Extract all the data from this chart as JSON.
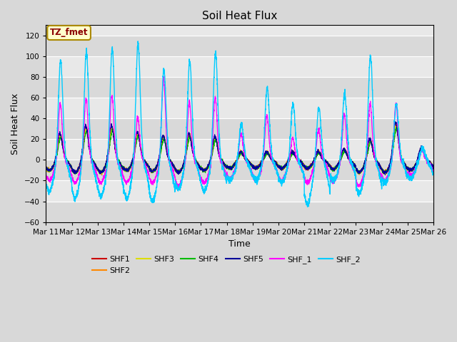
{
  "title": "Soil Heat Flux",
  "xlabel": "Time",
  "ylabel": "Soil Heat Flux",
  "ylim": [
    -60,
    130
  ],
  "yticks": [
    -60,
    -40,
    -20,
    0,
    20,
    40,
    60,
    80,
    100,
    120
  ],
  "xtick_labels": [
    "Mar 11",
    "Mar 12",
    "Mar 13",
    "Mar 14",
    "Mar 15",
    "Mar 16",
    "Mar 17",
    "Mar 18",
    "Mar 19",
    "Mar 20",
    "Mar 21",
    "Mar 22",
    "Mar 23",
    "Mar 24",
    "Mar 25",
    "Mar 26"
  ],
  "series_colors": {
    "SHF1": "#cc0000",
    "SHF2": "#ff8800",
    "SHF3": "#dddd00",
    "SHF4": "#00bb00",
    "SHF5": "#000099",
    "SHF_1": "#ff00ff",
    "SHF_2": "#00ccff"
  },
  "legend_label": "TZ_fmet",
  "bg_color": "#d8d8d8",
  "plot_bg": "#e8e8e8"
}
